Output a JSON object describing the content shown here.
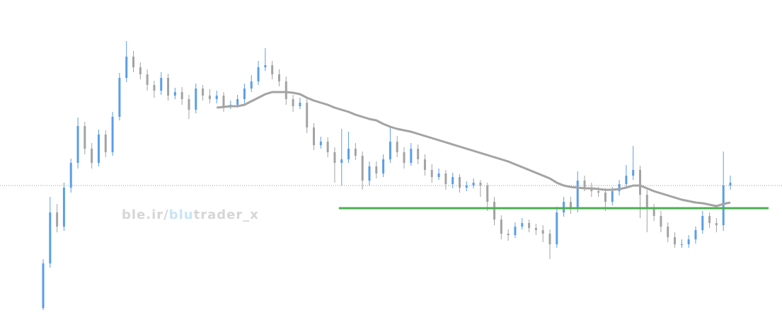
{
  "chart_data": {
    "type": "candlestick",
    "watermark": [
      "ble.ir/",
      "blu",
      "trader_x"
    ],
    "up_color": "#5b9ee6",
    "down_color": "#a3a3a3",
    "ma_color": "#a3a3a3",
    "support_color": "#4caf50",
    "ylim": [
      0,
      438
    ],
    "last_price_line": 176,
    "support": {
      "value": 144,
      "from_index": 43
    },
    "ohlc": [
      [
        3,
        72,
        0,
        66
      ],
      [
        66,
        160,
        60,
        138
      ],
      [
        138,
        150,
        110,
        118
      ],
      [
        118,
        180,
        112,
        173
      ],
      [
        173,
        214,
        166,
        208
      ],
      [
        208,
        272,
        200,
        260
      ],
      [
        260,
        266,
        220,
        228
      ],
      [
        228,
        236,
        200,
        208
      ],
      [
        208,
        255,
        203,
        248
      ],
      [
        248,
        254,
        216,
        223
      ],
      [
        223,
        280,
        218,
        273
      ],
      [
        273,
        335,
        268,
        328
      ],
      [
        328,
        380,
        322,
        358
      ],
      [
        358,
        366,
        336,
        343
      ],
      [
        343,
        350,
        326,
        333
      ],
      [
        333,
        340,
        310,
        318
      ],
      [
        318,
        324,
        300,
        310
      ],
      [
        310,
        336,
        304,
        328
      ],
      [
        328,
        334,
        296,
        303
      ],
      [
        303,
        314,
        298,
        308
      ],
      [
        308,
        315,
        290,
        298
      ],
      [
        298,
        304,
        270,
        283
      ],
      [
        283,
        320,
        278,
        313
      ],
      [
        313,
        318,
        296,
        303
      ],
      [
        303,
        312,
        292,
        298
      ],
      [
        298,
        310,
        292,
        303
      ],
      [
        303,
        308,
        280,
        288
      ],
      [
        288,
        296,
        284,
        290
      ],
      [
        290,
        304,
        286,
        298
      ],
      [
        298,
        320,
        292,
        313
      ],
      [
        313,
        332,
        308,
        323
      ],
      [
        323,
        352,
        318,
        343
      ],
      [
        343,
        370,
        338,
        346
      ],
      [
        346,
        352,
        326,
        333
      ],
      [
        333,
        340,
        316,
        323
      ],
      [
        323,
        330,
        290,
        298
      ],
      [
        298,
        304,
        280,
        288
      ],
      [
        288,
        300,
        284,
        293
      ],
      [
        293,
        298,
        250,
        258
      ],
      [
        258,
        264,
        226,
        233
      ],
      [
        233,
        245,
        228,
        238
      ],
      [
        238,
        244,
        216,
        223
      ],
      [
        223,
        230,
        180,
        208
      ],
      [
        208,
        256,
        176,
        213
      ],
      [
        213,
        252,
        208,
        228
      ],
      [
        228,
        236,
        212,
        218
      ],
      [
        218,
        224,
        170,
        183
      ],
      [
        183,
        210,
        176,
        203
      ],
      [
        203,
        210,
        186,
        193
      ],
      [
        193,
        220,
        188,
        213
      ],
      [
        213,
        258,
        208,
        238
      ],
      [
        238,
        246,
        216,
        223
      ],
      [
        223,
        230,
        200,
        208
      ],
      [
        208,
        236,
        204,
        228
      ],
      [
        228,
        234,
        206,
        213
      ],
      [
        213,
        220,
        190,
        198
      ],
      [
        198,
        206,
        180,
        188
      ],
      [
        188,
        200,
        184,
        193
      ],
      [
        193,
        198,
        170,
        178
      ],
      [
        178,
        194,
        172,
        188
      ],
      [
        188,
        192,
        166,
        173
      ],
      [
        173,
        182,
        168,
        176
      ],
      [
        176,
        186,
        172,
        180
      ],
      [
        180,
        184,
        160,
        176
      ],
      [
        176,
        180,
        140,
        153
      ],
      [
        153,
        160,
        120,
        128
      ],
      [
        128,
        134,
        100,
        108
      ],
      [
        108,
        114,
        98,
        106
      ],
      [
        106,
        124,
        102,
        118
      ],
      [
        118,
        130,
        114,
        123
      ],
      [
        123,
        128,
        110,
        116
      ],
      [
        116,
        122,
        106,
        113
      ],
      [
        113,
        120,
        96,
        108
      ],
      [
        108,
        114,
        72,
        93
      ],
      [
        93,
        146,
        88,
        138
      ],
      [
        138,
        160,
        132,
        153
      ],
      [
        153,
        160,
        136,
        143
      ],
      [
        143,
        196,
        138,
        183
      ],
      [
        183,
        190,
        168,
        173
      ],
      [
        173,
        180,
        160,
        168
      ],
      [
        168,
        174,
        160,
        166
      ],
      [
        166,
        172,
        140,
        153
      ],
      [
        153,
        174,
        148,
        168
      ],
      [
        168,
        184,
        162,
        178
      ],
      [
        178,
        205,
        172,
        190
      ],
      [
        190,
        232,
        184,
        198
      ],
      [
        198,
        204,
        130,
        163
      ],
      [
        163,
        170,
        110,
        143
      ],
      [
        143,
        150,
        126,
        133
      ],
      [
        133,
        140,
        110,
        118
      ],
      [
        118,
        124,
        96,
        103
      ],
      [
        103,
        110,
        88,
        93
      ],
      [
        93,
        100,
        88,
        93
      ],
      [
        93,
        106,
        88,
        100
      ],
      [
        100,
        118,
        94,
        113
      ],
      [
        113,
        140,
        108,
        133
      ],
      [
        133,
        138,
        116,
        123
      ],
      [
        123,
        130,
        110,
        120
      ],
      [
        120,
        224,
        112,
        176
      ],
      [
        176,
        190,
        170,
        180
      ]
    ],
    "ma": [
      null,
      null,
      null,
      null,
      null,
      null,
      null,
      null,
      null,
      null,
      null,
      null,
      null,
      null,
      null,
      null,
      null,
      null,
      null,
      null,
      null,
      null,
      null,
      null,
      null,
      286,
      287,
      288,
      288,
      290,
      295,
      300,
      305,
      308,
      308,
      308,
      307,
      305,
      300,
      296,
      293,
      290,
      286,
      283,
      280,
      276,
      273,
      270,
      268,
      263,
      259,
      256,
      254,
      252,
      249,
      246,
      243,
      240,
      237,
      234,
      231,
      228,
      225,
      222,
      219,
      216,
      213,
      210,
      206,
      202,
      198,
      194,
      190,
      186,
      180,
      176,
      174,
      173,
      172,
      172,
      171,
      170,
      170,
      171,
      173,
      176,
      176,
      172,
      168,
      165,
      162,
      159,
      156,
      154,
      152,
      151,
      149,
      147,
      150,
      152
    ]
  }
}
